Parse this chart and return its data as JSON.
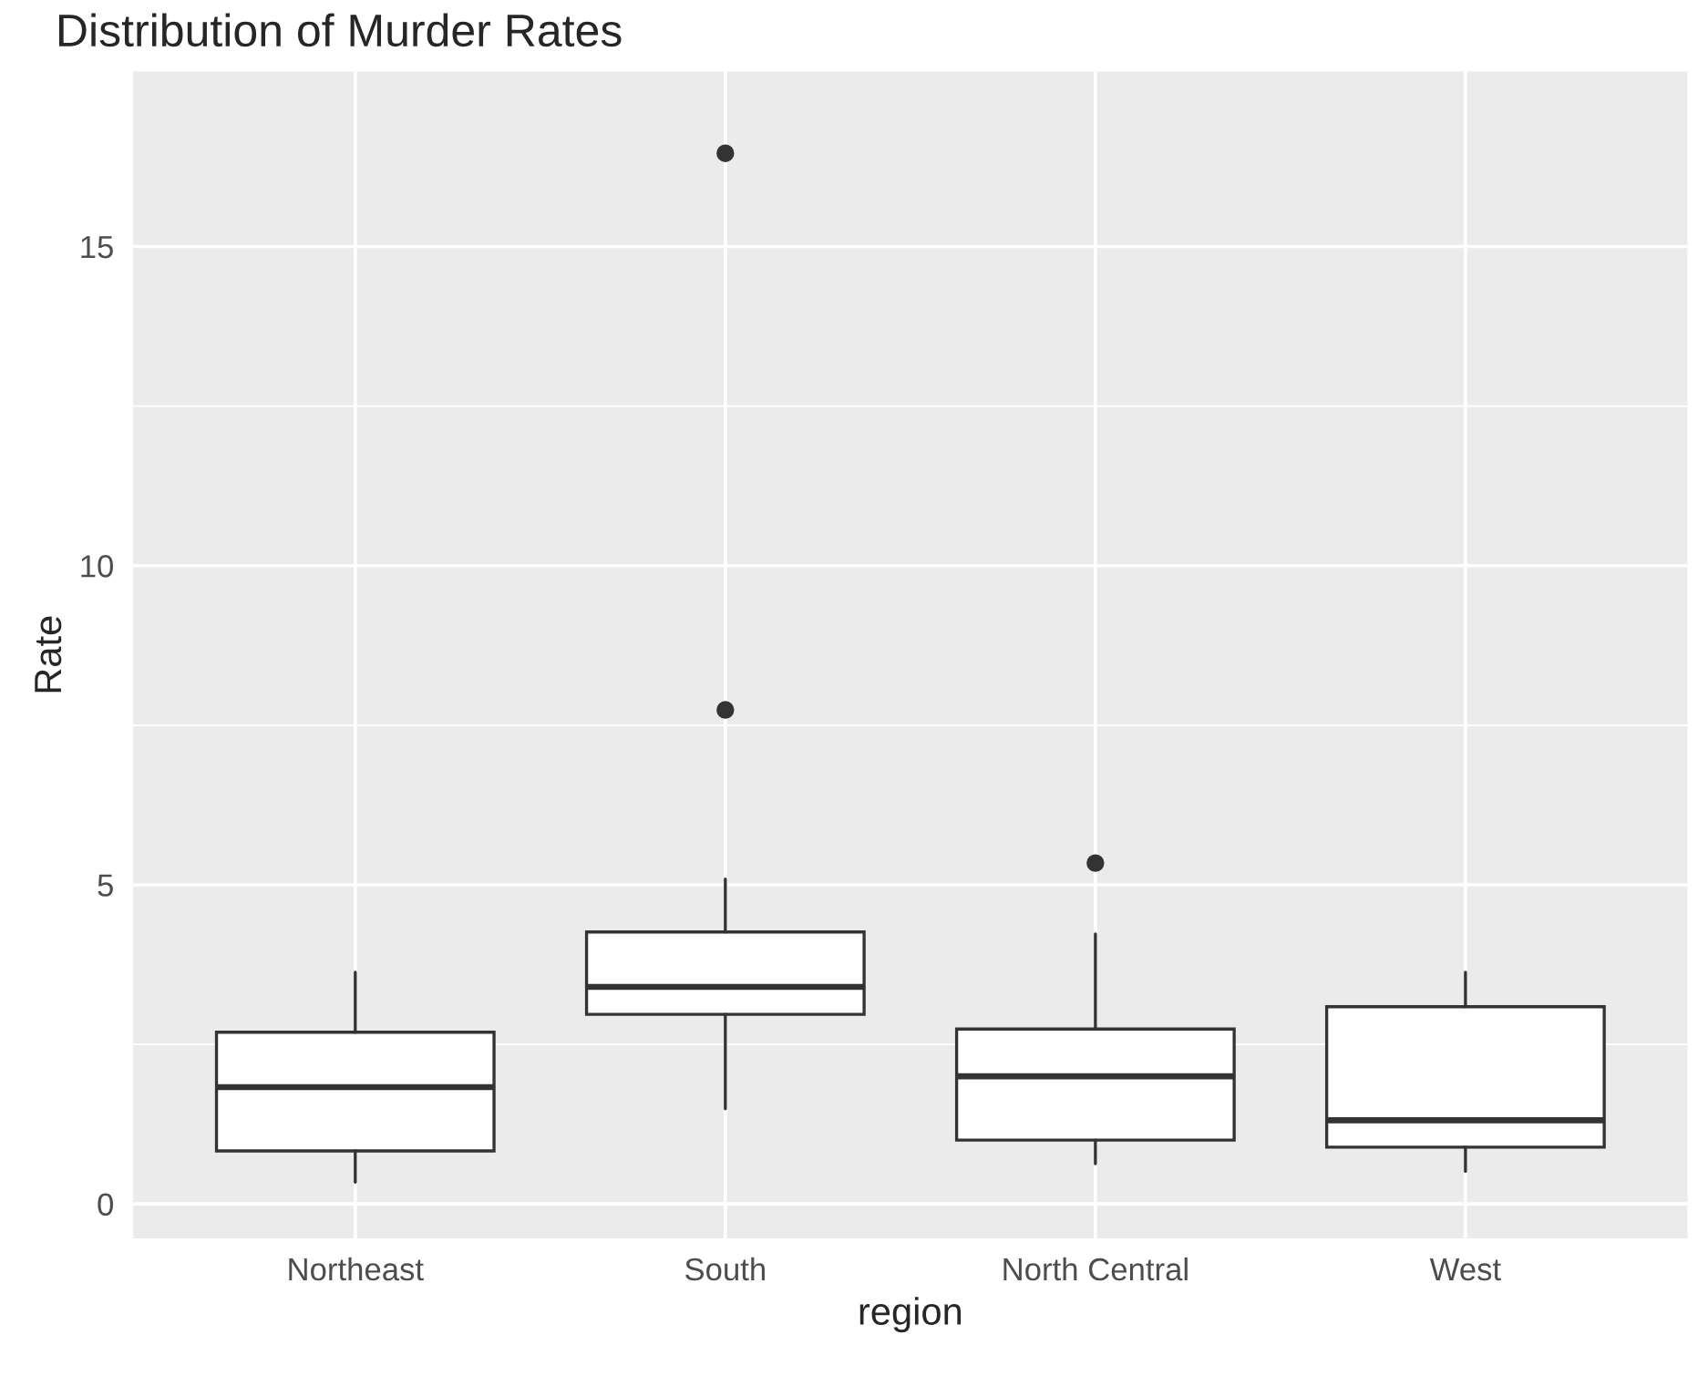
{
  "chart_data": {
    "type": "box",
    "title": "Distribution of Murder Rates",
    "xlabel": "region",
    "ylabel": "Rate",
    "categories": [
      "Northeast",
      "South",
      "North Central",
      "West"
    ],
    "boxes": [
      {
        "low": 0.34,
        "q1": 0.83,
        "median": 1.83,
        "q3": 2.69,
        "high": 3.63
      },
      {
        "low": 1.49,
        "q1": 2.97,
        "median": 3.4,
        "q3": 4.26,
        "high": 5.09,
        "outliers": [
          7.74,
          16.46
        ]
      },
      {
        "low": 0.63,
        "q1": 1.0,
        "median": 2.0,
        "q3": 2.74,
        "high": 4.23,
        "outliers": [
          5.34
        ]
      },
      {
        "low": 0.51,
        "q1": 0.89,
        "median": 1.31,
        "q3": 3.09,
        "high": 3.63
      }
    ],
    "ylim": [
      -0.54,
      17.74
    ],
    "yticks": [
      0,
      5,
      10,
      15
    ],
    "grid": true
  }
}
